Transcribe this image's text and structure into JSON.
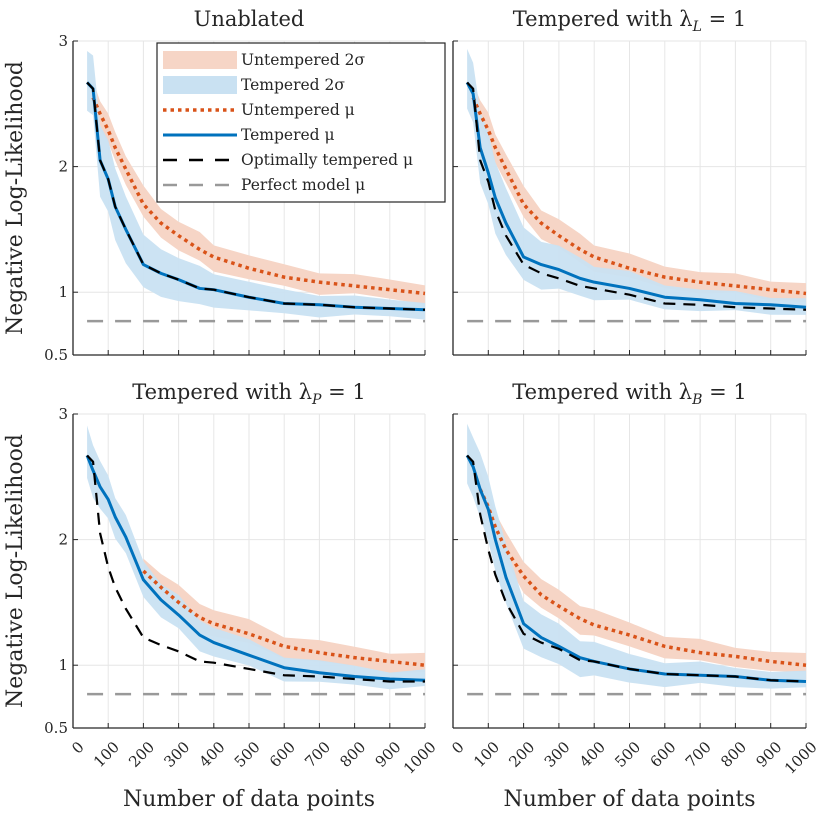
{
  "chart_data": {
    "type": "line",
    "layout": "2x2 grid",
    "shared": {
      "xlabel": "Number of data points",
      "ylabel": "Negative Log-Likelihood",
      "xlim": [
        0,
        1000
      ],
      "ylim": [
        0.5,
        3
      ],
      "xticks": [
        0,
        100,
        200,
        300,
        400,
        500,
        600,
        700,
        800,
        900,
        1000
      ],
      "xtick_labels": [
        "0",
        "100",
        "200",
        "300",
        "400",
        "500",
        "600",
        "700",
        "800",
        "900",
        "1000"
      ],
      "yticks": [
        0.5,
        1,
        2,
        3
      ],
      "ytick_labels": [
        "0.5",
        "1",
        "2",
        "3"
      ],
      "grid": true,
      "colors": {
        "untempered": "#D95319",
        "untempered_band": "#F6D5C6",
        "tempered": "#0072BD",
        "tempered_band": "#C9E1F2",
        "optimal": "#000000",
        "perfect": "#999999"
      }
    },
    "legend": {
      "placement": "top-right of first panel",
      "entries": [
        {
          "key": "untempered_band",
          "label": "Untempered 2σ",
          "style": "fill"
        },
        {
          "key": "tempered_band",
          "label": "Tempered 2σ",
          "style": "fill"
        },
        {
          "key": "untempered_mu",
          "label": "Untempered μ",
          "style": "dotted"
        },
        {
          "key": "tempered_mu",
          "label": "Tempered μ",
          "style": "solid"
        },
        {
          "key": "optimal_mu",
          "label": "Optimally tempered μ",
          "style": "dashed"
        },
        {
          "key": "perfect_mu",
          "label": "Perfect model μ",
          "style": "dashed-gray"
        }
      ]
    },
    "panels": [
      {
        "title": "Unablated",
        "title_sub": "",
        "title_tail": "",
        "x": [
          40,
          57,
          77,
          100,
          120,
          150,
          200,
          250,
          300,
          360,
          400,
          500,
          600,
          700,
          800,
          900,
          1000
        ],
        "series": [
          {
            "name": "Untempered μ",
            "key": "untempered",
            "x_start": 57,
            "values": [
              null,
              2.55,
              2.42,
              2.29,
              2.15,
              1.98,
              1.7,
              1.55,
              1.45,
              1.34,
              1.28,
              1.19,
              1.12,
              1.08,
              1.05,
              1.02,
              0.99
            ]
          },
          {
            "name": "Tempered μ",
            "key": "tempered",
            "values": [
              2.67,
              2.62,
              2.05,
              1.9,
              1.68,
              1.5,
              1.22,
              1.15,
              1.1,
              1.03,
              1.02,
              0.96,
              0.91,
              0.9,
              0.88,
              0.87,
              0.86
            ]
          },
          {
            "name": "Optimally tempered μ",
            "key": "optimal",
            "values": [
              2.67,
              2.62,
              2.05,
              1.9,
              1.68,
              1.5,
              1.22,
              1.15,
              1.1,
              1.03,
              1.02,
              0.96,
              0.91,
              0.9,
              0.88,
              0.87,
              0.86
            ]
          },
          {
            "name": "Perfect model μ",
            "key": "perfect",
            "values": [
              0.77,
              0.77,
              0.77,
              0.77,
              0.77,
              0.77,
              0.77,
              0.77,
              0.77,
              0.77,
              0.77,
              0.77,
              0.77,
              0.77,
              0.77,
              0.77,
              0.77
            ]
          }
        ],
        "bands": [
          {
            "name": "Untempered 2σ",
            "key": "untempered_band",
            "half_width": [
              null,
              0.12,
              0.12,
              0.12,
              0.12,
              0.12,
              0.13,
              0.12,
              0.12,
              0.12,
              0.11,
              0.1,
              0.09,
              0.09,
              0.08,
              0.08,
              0.08
            ]
          },
          {
            "name": "Tempered 2σ",
            "key": "tempered_band",
            "half_width": [
              0.25,
              0.25,
              0.3,
              0.3,
              0.3,
              0.28,
              0.22,
              0.2,
              0.18,
              0.16,
              0.14,
              0.12,
              0.1,
              0.09,
              0.08,
              0.07,
              0.07
            ]
          }
        ]
      },
      {
        "title": "Tempered with λ",
        "title_sub": "L",
        "title_tail": " = 1",
        "x": [
          40,
          57,
          77,
          100,
          120,
          150,
          200,
          250,
          300,
          360,
          400,
          500,
          600,
          700,
          800,
          900,
          1000
        ],
        "series": [
          {
            "name": "Untempered μ",
            "key": "untempered",
            "values": [
              null,
              2.55,
              2.42,
              2.29,
              2.15,
              1.98,
              1.7,
              1.55,
              1.45,
              1.34,
              1.28,
              1.19,
              1.12,
              1.08,
              1.05,
              1.02,
              0.99
            ]
          },
          {
            "name": "Tempered μ",
            "key": "tempered",
            "values": [
              2.67,
              2.58,
              2.15,
              1.95,
              1.75,
              1.55,
              1.28,
              1.22,
              1.18,
              1.11,
              1.08,
              1.03,
              0.96,
              0.94,
              0.91,
              0.9,
              0.88
            ]
          },
          {
            "name": "Optimally tempered μ",
            "key": "optimal",
            "values": [
              2.67,
              2.62,
              2.05,
              1.88,
              1.65,
              1.45,
              1.22,
              1.15,
              1.11,
              1.05,
              1.03,
              0.98,
              0.91,
              0.9,
              0.88,
              0.87,
              0.86
            ]
          },
          {
            "name": "Perfect model μ",
            "key": "perfect",
            "values": [
              0.77,
              0.77,
              0.77,
              0.77,
              0.77,
              0.77,
              0.77,
              0.77,
              0.77,
              0.77,
              0.77,
              0.77,
              0.77,
              0.77,
              0.77,
              0.77,
              0.77
            ]
          }
        ],
        "bands": [
          {
            "name": "Untempered 2σ",
            "key": "untempered_band",
            "half_width": [
              null,
              0.12,
              0.12,
              0.12,
              0.12,
              0.12,
              0.13,
              0.12,
              0.12,
              0.12,
              0.11,
              0.1,
              0.09,
              0.09,
              0.08,
              0.08,
              0.08
            ]
          },
          {
            "name": "Tempered 2σ",
            "key": "tempered_band",
            "half_width": [
              0.25,
              0.25,
              0.3,
              0.3,
              0.3,
              0.28,
              0.22,
              0.2,
              0.18,
              0.16,
              0.14,
              0.12,
              0.1,
              0.09,
              0.08,
              0.07,
              0.07
            ]
          }
        ]
      },
      {
        "title": "Tempered with λ",
        "title_sub": "P",
        "title_tail": " = 1",
        "x": [
          40,
          57,
          77,
          100,
          120,
          150,
          200,
          250,
          300,
          360,
          400,
          500,
          600,
          700,
          800,
          900,
          1000
        ],
        "series": [
          {
            "name": "Untempered μ",
            "key": "untempered",
            "values": [
              null,
              null,
              null,
              null,
              null,
              null,
              1.75,
              1.62,
              1.5,
              1.38,
              1.33,
              1.25,
              1.15,
              1.1,
              1.06,
              1.03,
              1.0
            ]
          },
          {
            "name": "Tempered μ",
            "key": "tempered",
            "values": [
              2.67,
              2.55,
              2.42,
              2.32,
              2.18,
              2.02,
              1.68,
              1.52,
              1.4,
              1.24,
              1.18,
              1.08,
              0.98,
              0.94,
              0.91,
              0.89,
              0.88
            ]
          },
          {
            "name": "Optimally tempered μ",
            "key": "optimal",
            "values": [
              2.67,
              2.62,
              2.05,
              1.78,
              1.62,
              1.45,
              1.22,
              1.16,
              1.11,
              1.03,
              1.02,
              0.97,
              0.92,
              0.91,
              0.89,
              0.87,
              0.87
            ]
          },
          {
            "name": "Perfect model μ",
            "key": "perfect",
            "values": [
              0.77,
              0.77,
              0.77,
              0.77,
              0.77,
              0.77,
              0.77,
              0.77,
              0.77,
              0.77,
              0.77,
              0.77,
              0.77,
              0.77,
              0.77,
              0.77,
              0.77
            ]
          }
        ],
        "bands": [
          {
            "name": "Untempered 2σ",
            "key": "untempered_band",
            "half_width": [
              null,
              null,
              null,
              null,
              null,
              null,
              0.1,
              0.12,
              0.12,
              0.12,
              0.11,
              0.1,
              0.09,
              0.09,
              0.08,
              0.08,
              0.08
            ]
          },
          {
            "name": "Tempered 2σ",
            "key": "tempered_band",
            "half_width": [
              0.22,
              0.22,
              0.2,
              0.18,
              0.17,
              0.16,
              0.15,
              0.14,
              0.14,
              0.13,
              0.12,
              0.11,
              0.1,
              0.09,
              0.08,
              0.07,
              0.07
            ]
          }
        ]
      },
      {
        "title": "Tempered with λ",
        "title_sub": "B",
        "title_tail": " = 1",
        "x": [
          40,
          57,
          77,
          100,
          120,
          150,
          200,
          250,
          300,
          360,
          400,
          500,
          600,
          700,
          800,
          900,
          1000
        ],
        "series": [
          {
            "name": "Untempered μ",
            "key": "untempered",
            "values": [
              null,
              null,
              2.4,
              2.26,
              2.1,
              1.92,
              1.71,
              1.56,
              1.47,
              1.37,
              1.32,
              1.24,
              1.15,
              1.1,
              1.07,
              1.03,
              1.0
            ]
          },
          {
            "name": "Tempered μ",
            "key": "tempered",
            "values": [
              2.67,
              2.58,
              2.4,
              2.24,
              2.0,
              1.7,
              1.33,
              1.22,
              1.15,
              1.06,
              1.03,
              0.97,
              0.93,
              0.92,
              0.91,
              0.88,
              0.87
            ]
          },
          {
            "name": "Optimally tempered μ",
            "key": "optimal",
            "values": [
              2.67,
              2.62,
              2.2,
              1.92,
              1.72,
              1.5,
              1.25,
              1.18,
              1.13,
              1.04,
              1.03,
              0.97,
              0.93,
              0.92,
              0.91,
              0.88,
              0.87
            ]
          },
          {
            "name": "Perfect model μ",
            "key": "perfect",
            "values": [
              0.77,
              0.77,
              0.77,
              0.77,
              0.77,
              0.77,
              0.77,
              0.77,
              0.77,
              0.77,
              0.77,
              0.77,
              0.77,
              0.77,
              0.77,
              0.77,
              0.77
            ]
          }
        ],
        "bands": [
          {
            "name": "Untempered 2σ",
            "key": "untempered_band",
            "half_width": [
              null,
              null,
              0.12,
              0.12,
              0.12,
              0.12,
              0.13,
              0.12,
              0.12,
              0.12,
              0.11,
              0.1,
              0.09,
              0.09,
              0.08,
              0.08,
              0.08
            ]
          },
          {
            "name": "Tempered 2σ",
            "key": "tempered_band",
            "half_width": [
              0.25,
              0.25,
              0.27,
              0.27,
              0.27,
              0.25,
              0.2,
              0.18,
              0.17,
              0.15,
              0.14,
              0.12,
              0.1,
              0.09,
              0.08,
              0.07,
              0.07
            ]
          }
        ]
      }
    ]
  }
}
